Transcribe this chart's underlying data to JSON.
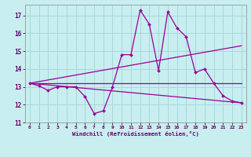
{
  "xlabel": "Windchill (Refroidissement éolien,°C)",
  "bg_color": "#c8eef0",
  "grid_color": "#a8d8d8",
  "line_color": "#990099",
  "xlim": [
    -0.5,
    23.5
  ],
  "ylim": [
    11,
    17.6
  ],
  "yticks": [
    11,
    12,
    13,
    14,
    15,
    16,
    17
  ],
  "xticks": [
    0,
    1,
    2,
    3,
    4,
    5,
    6,
    7,
    8,
    9,
    10,
    11,
    12,
    13,
    14,
    15,
    16,
    17,
    18,
    19,
    20,
    21,
    22,
    23
  ],
  "series1_x": [
    0,
    1,
    2,
    3,
    4,
    5,
    6,
    7,
    8,
    9,
    10,
    11,
    12,
    13,
    14,
    15,
    16,
    17,
    18,
    19,
    20,
    21,
    22,
    23
  ],
  "series1_y": [
    13.2,
    13.05,
    12.8,
    13.0,
    13.0,
    13.0,
    12.45,
    11.5,
    11.65,
    13.0,
    14.8,
    14.8,
    17.3,
    16.5,
    13.9,
    17.2,
    16.3,
    15.8,
    13.8,
    14.0,
    13.2,
    12.5,
    12.2,
    12.1
  ],
  "series2_x": [
    0,
    23
  ],
  "series2_y": [
    13.2,
    13.2
  ],
  "series3_x": [
    0,
    23
  ],
  "series3_y": [
    13.2,
    15.3
  ],
  "series4_x": [
    0,
    23
  ],
  "series4_y": [
    13.2,
    12.1
  ]
}
